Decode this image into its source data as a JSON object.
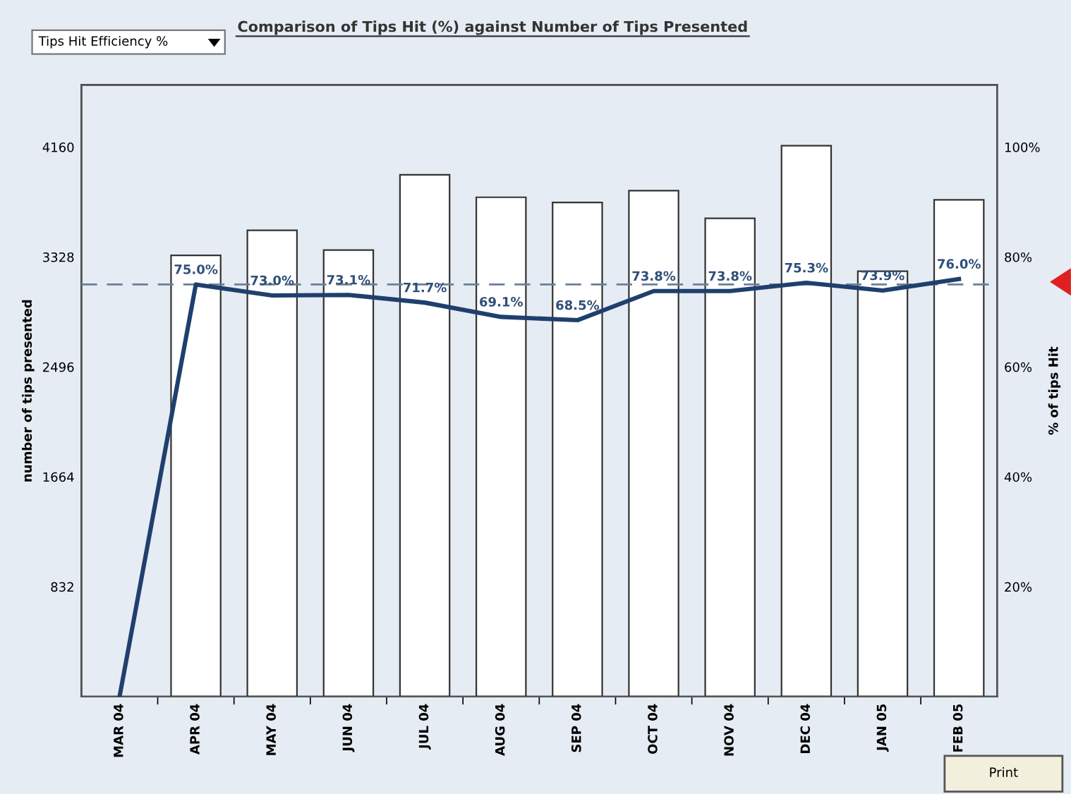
{
  "chart_data": {
    "type": "bar",
    "title": "Comparison of Tips Hit (%) against Number of Tips Presented",
    "categories": [
      "MAR 04",
      "APR 04",
      "MAY 04",
      "JUN 04",
      "JUL 04",
      "AUG 04",
      "SEP 04",
      "OCT 04",
      "NOV 04",
      "DEC 04",
      "JAN 05",
      "FEB 05"
    ],
    "series": [
      {
        "color": "#ffffff",
        "values": [
          null,
          3340,
          3530,
          3380,
          3950,
          3780,
          3740,
          3830,
          3620,
          4170,
          3220,
          3760
        ]
      },
      {
        "type": "line",
        "axis": "y2",
        "color": "#1f3f6e",
        "values": [
          0,
          75.0,
          73.0,
          73.1,
          71.7,
          69.1,
          68.5,
          73.8,
          73.8,
          75.3,
          73.9,
          76.0
        ],
        "value_labels": [
          null,
          "75.0%",
          "73.0%",
          "73.1%",
          "71.7%",
          "69.1%",
          "68.5%",
          "73.8%",
          "73.8%",
          "75.3%",
          "73.9%",
          "76.0%"
        ]
      }
    ],
    "ylabel": "number of tips presented",
    "y2label": "% of tips Hit",
    "ylim": [
      0,
      4630
    ],
    "yticks": [
      832,
      1664,
      2496,
      3328,
      4160
    ],
    "y2lim": [
      0,
      111.3
    ],
    "y2ticks": [
      {
        "value": 20,
        "label": "20%"
      },
      {
        "value": 40,
        "label": "40%"
      },
      {
        "value": 60,
        "label": "60%"
      },
      {
        "value": 80,
        "label": "80%"
      },
      {
        "value": 100,
        "label": "100%"
      }
    ],
    "ref_lines": [
      {
        "axis": "y2",
        "value": 75,
        "color": "#6a7f99",
        "line_style": "dashed"
      }
    ],
    "annotations": [
      "Tips Hit Efficiency %",
      "Print"
    ],
    "grid": false,
    "legend": false,
    "marker": "none",
    "line_style": "solid"
  }
}
